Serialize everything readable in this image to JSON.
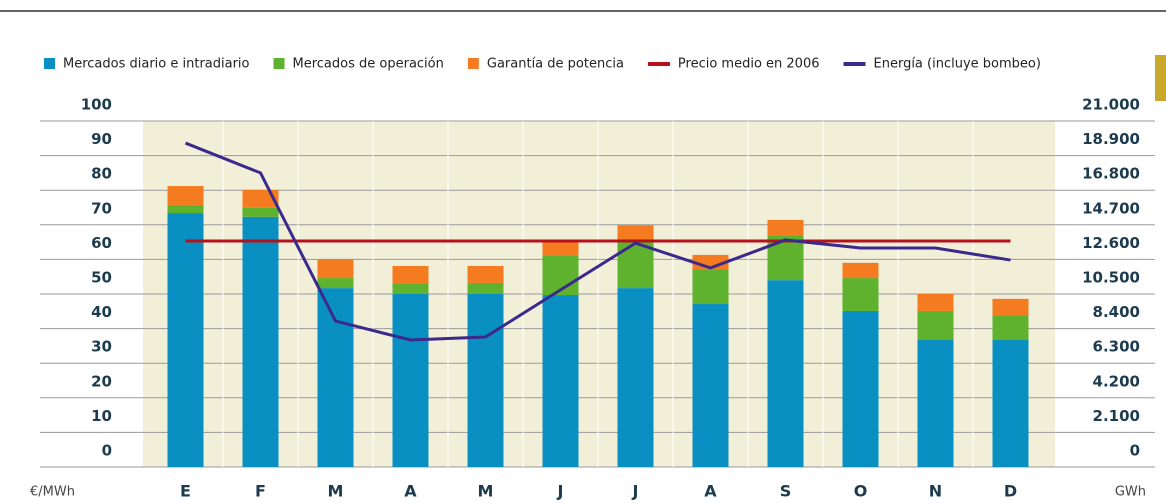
{
  "chart_data": {
    "type": "bar",
    "stacked": true,
    "categories": [
      "E",
      "F",
      "M",
      "A",
      "M",
      "J",
      "J",
      "A",
      "S",
      "O",
      "N",
      "D"
    ],
    "series": [
      {
        "name": "Mercados diario e intradiario",
        "color": "#0a8fc2",
        "type": "bar",
        "values": [
          73.4,
          72.3,
          51.7,
          50,
          50,
          49.7,
          51.7,
          47.1,
          54,
          45.1,
          36.7,
          36.7
        ]
      },
      {
        "name": "Mercados de operación",
        "color": "#5fb22d",
        "type": "bar",
        "values": [
          2.3,
          2.6,
          2.9,
          2.9,
          3.2,
          11.3,
          13.9,
          10.1,
          13,
          9.5,
          8.4,
          7.2
        ]
      },
      {
        "name": "Garantía de potencia",
        "color": "#f47b20",
        "type": "bar",
        "values": [
          5.5,
          5.2,
          5.5,
          5.2,
          4.9,
          4.6,
          4.3,
          4.1,
          4.4,
          4.4,
          4.9,
          4.7
        ]
      },
      {
        "name": "Precio medio en 2006",
        "color": "#b5121b",
        "type": "line",
        "values": [
          65.3,
          65.3,
          65.3,
          65.3,
          65.3,
          65.3,
          65.3,
          65.3,
          65.3,
          65.3,
          65.3,
          65.3
        ]
      },
      {
        "name": "Energía (incluye bombeo)",
        "color": "#3b2a8c",
        "type": "line",
        "axis": "y2",
        "values": [
          19660,
          17850,
          8860,
          7710,
          7890,
          10750,
          13590,
          12080,
          13780,
          13290,
          13290,
          12560
        ]
      }
    ],
    "ylabel": "€/MWh",
    "y2label": "GWh",
    "ylim": [
      0,
      100
    ],
    "yticks": [
      0,
      10,
      20,
      30,
      40,
      50,
      60,
      70,
      80,
      90,
      100
    ],
    "y2lim": [
      0,
      21000
    ],
    "y2ticks": [
      0,
      {
        "value": 2100,
        "label": "2.100"
      },
      {
        "value": 4200,
        "label": "4.200"
      },
      {
        "value": 6300,
        "label": "6.300"
      },
      {
        "value": 8400,
        "label": "8.400"
      },
      {
        "value": 10500,
        "label": "10.500"
      },
      {
        "value": 12600,
        "label": "12.600"
      },
      {
        "value": 14700,
        "label": "14.700"
      },
      {
        "value": 16800,
        "label": "16.800"
      },
      {
        "value": 18900,
        "label": "18.900"
      },
      {
        "value": 21000,
        "label": "21.000"
      }
    ],
    "grid": true,
    "legend": "top"
  }
}
